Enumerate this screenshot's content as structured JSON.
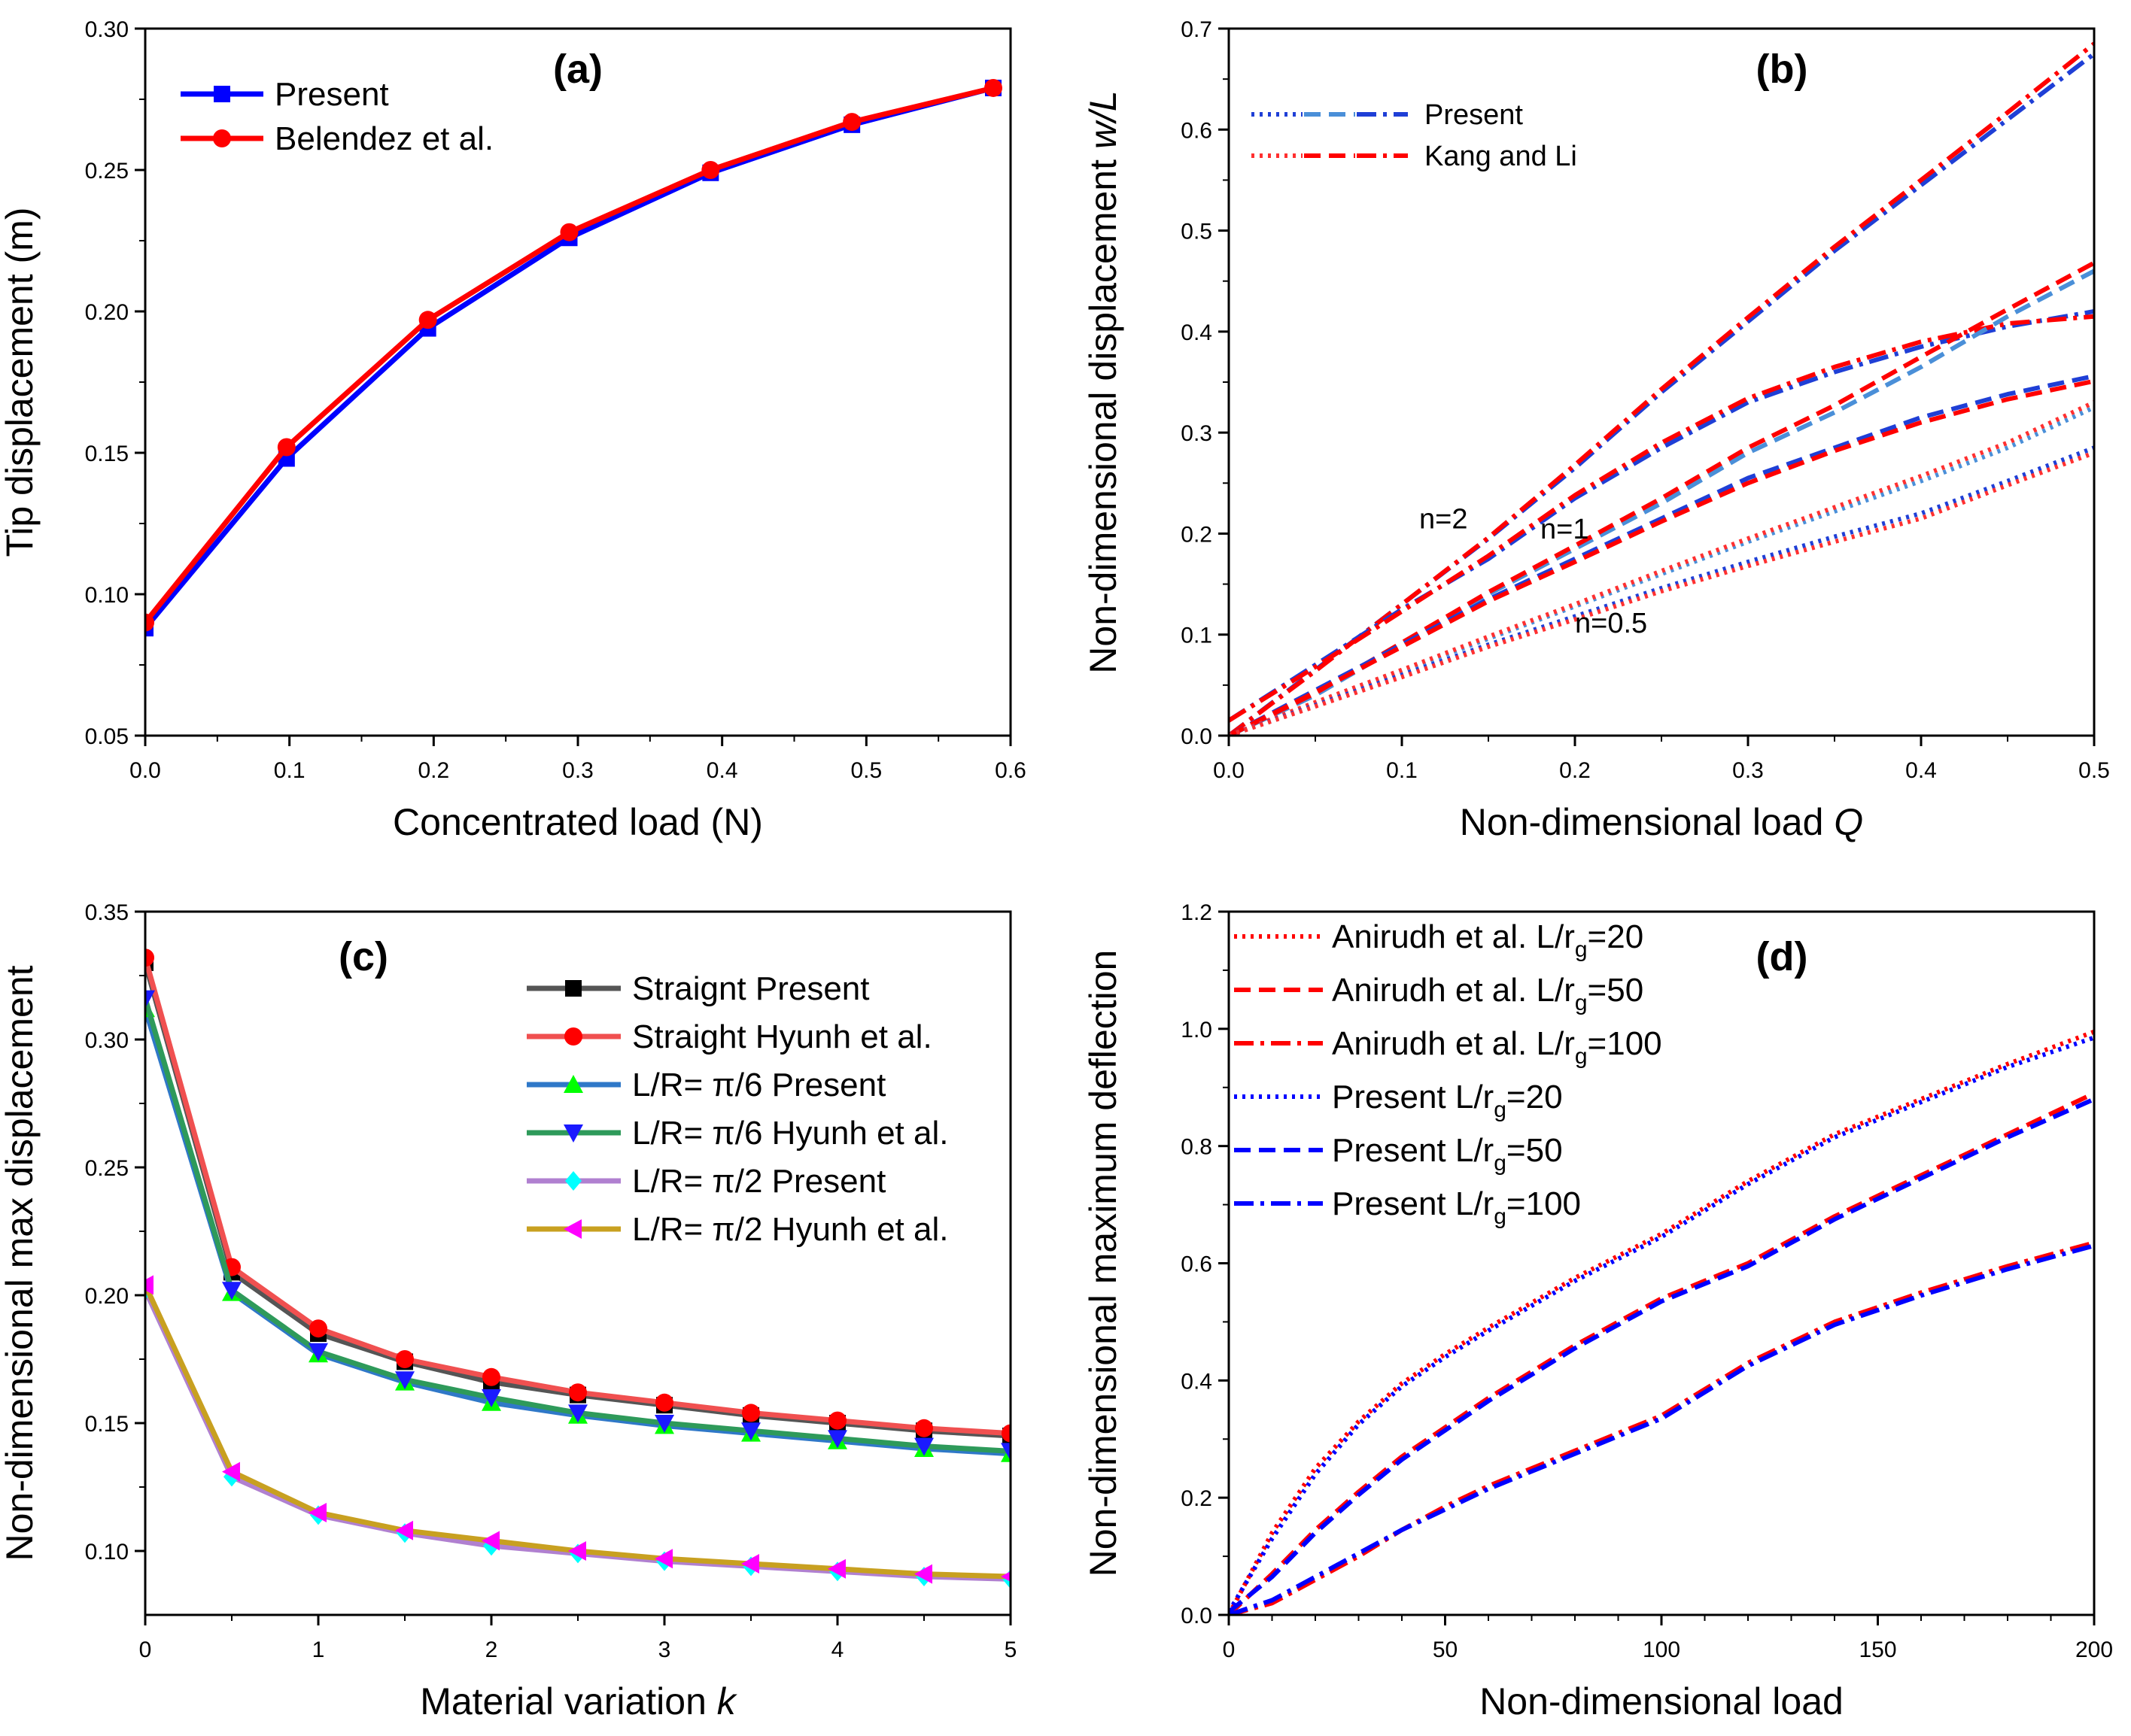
{
  "chart_data": [
    {
      "panel": "(a)",
      "type": "line",
      "xlabel": "Concentrated load (N)",
      "ylabel": "Tip displacement (m)",
      "xlim": [
        0,
        0.6
      ],
      "ylim": [
        0.05,
        0.3
      ],
      "xticks": [
        "0.0",
        "0.1",
        "0.2",
        "0.3",
        "0.4",
        "0.5",
        "0.6"
      ],
      "yticks": [
        "0.05",
        "0.10",
        "0.15",
        "0.20",
        "0.25",
        "0.30"
      ],
      "legend": "top-left",
      "series": [
        {
          "name": "Present",
          "color": "#0000ff",
          "marker": "square",
          "style": "solid",
          "x": [
            0.0,
            0.098,
            0.196,
            0.294,
            0.392,
            0.49,
            0.588
          ],
          "y": [
            0.088,
            0.148,
            0.194,
            0.226,
            0.249,
            0.266,
            0.279
          ]
        },
        {
          "name": "Belendez et al.",
          "color": "#ff0000",
          "marker": "circle",
          "style": "solid",
          "x": [
            0.0,
            0.098,
            0.196,
            0.294,
            0.392,
            0.49,
            0.588
          ],
          "y": [
            0.09,
            0.152,
            0.197,
            0.228,
            0.25,
            0.267,
            0.279
          ]
        }
      ]
    },
    {
      "panel": "(b)",
      "type": "line",
      "xlabel": "Non-dimensional load",
      "xlabel_var": "Q",
      "ylabel": "Non-dimensional displacement",
      "ylabel_var": "w/L",
      "xlim": [
        0,
        0.5
      ],
      "ylim": [
        0,
        0.7
      ],
      "xticks": [
        "0.0",
        "0.1",
        "0.2",
        "0.3",
        "0.4",
        "0.5"
      ],
      "yticks": [
        "0.0",
        "0.1",
        "0.2",
        "0.3",
        "0.4",
        "0.5",
        "0.6",
        "0.7"
      ],
      "legend": "top-left",
      "legend_entries": [
        {
          "name": "Present",
          "colors": [
            "#1f3fd6",
            "#4a8fd8",
            "#1f3fd6"
          ]
        },
        {
          "name": "Kang and Li",
          "colors": [
            "#ff3030",
            "#ff0000",
            "#ff0000"
          ]
        }
      ],
      "annotations": [
        {
          "text": "n=2",
          "x": 0.11,
          "y": 0.205
        },
        {
          "text": "n=1",
          "x": 0.18,
          "y": 0.195
        },
        {
          "text": "n=0.5",
          "x": 0.2,
          "y": 0.102
        }
      ],
      "series": [
        {
          "name": "Present",
          "group": "n=2",
          "style": "dashdot",
          "color": "#1f3fd6",
          "x": [
            0,
            0.05,
            0.1,
            0.15,
            0.2,
            0.25,
            0.3,
            0.35,
            0.4,
            0.45,
            0.5
          ],
          "y": [
            0,
            0.065,
            0.13,
            0.195,
            0.265,
            0.34,
            0.41,
            0.48,
            0.545,
            0.61,
            0.675
          ]
        },
        {
          "name": "Kang and Li",
          "group": "n=2",
          "style": "dashdot",
          "color": "#ff0000",
          "x": [
            0,
            0.05,
            0.1,
            0.15,
            0.2,
            0.25,
            0.3,
            0.35,
            0.4,
            0.45,
            0.5
          ],
          "y": [
            0,
            0.064,
            0.13,
            0.196,
            0.268,
            0.343,
            0.414,
            0.484,
            0.55,
            0.617,
            0.685
          ]
        },
        {
          "name": "Present",
          "group": "n=2",
          "style": "dashdot",
          "color": "#1f3fd6",
          "x": [
            0,
            0.05,
            0.1,
            0.15,
            0.2,
            0.25,
            0.3,
            0.35,
            0.4,
            0.45,
            0.5
          ],
          "y": [
            0.015,
            0.07,
            0.125,
            0.175,
            0.235,
            0.285,
            0.33,
            0.36,
            0.385,
            0.405,
            0.42
          ]
        },
        {
          "name": "Kang and Li",
          "group": "n=2",
          "style": "dashdot",
          "color": "#ff0000",
          "x": [
            0,
            0.05,
            0.1,
            0.15,
            0.2,
            0.25,
            0.3,
            0.35,
            0.4,
            0.45,
            0.5
          ],
          "y": [
            0.015,
            0.068,
            0.123,
            0.178,
            0.238,
            0.29,
            0.334,
            0.365,
            0.39,
            0.408,
            0.415
          ]
        },
        {
          "name": "Present",
          "group": "n=1",
          "style": "dashed",
          "color": "#4a8fd8",
          "x": [
            0,
            0.05,
            0.1,
            0.15,
            0.2,
            0.25,
            0.3,
            0.35,
            0.4,
            0.45,
            0.5
          ],
          "y": [
            0,
            0.04,
            0.09,
            0.14,
            0.185,
            0.23,
            0.28,
            0.32,
            0.365,
            0.415,
            0.46
          ]
        },
        {
          "name": "Kang and Li",
          "group": "n=1",
          "style": "dashed",
          "color": "#ff0000",
          "x": [
            0,
            0.05,
            0.1,
            0.15,
            0.2,
            0.25,
            0.3,
            0.35,
            0.4,
            0.45,
            0.5
          ],
          "y": [
            0,
            0.042,
            0.092,
            0.142,
            0.188,
            0.235,
            0.285,
            0.327,
            0.375,
            0.422,
            0.468
          ]
        },
        {
          "name": "Present",
          "group": "n=1",
          "style": "dashed",
          "color": "#1f3fd6",
          "x": [
            0,
            0.05,
            0.1,
            0.15,
            0.2,
            0.25,
            0.3,
            0.35,
            0.4,
            0.45,
            0.5
          ],
          "y": [
            0,
            0.045,
            0.09,
            0.135,
            0.175,
            0.215,
            0.255,
            0.285,
            0.315,
            0.338,
            0.356
          ]
        },
        {
          "name": "Kang and Li",
          "group": "n=1",
          "style": "dashed",
          "color": "#ff0000",
          "x": [
            0,
            0.05,
            0.1,
            0.15,
            0.2,
            0.25,
            0.3,
            0.35,
            0.4,
            0.45,
            0.5
          ],
          "y": [
            0,
            0.043,
            0.088,
            0.133,
            0.172,
            0.212,
            0.25,
            0.282,
            0.31,
            0.333,
            0.351
          ]
        },
        {
          "name": "Present",
          "group": "n=0.5",
          "style": "dotted",
          "color": "#4a8fd8",
          "x": [
            0,
            0.05,
            0.1,
            0.15,
            0.2,
            0.25,
            0.3,
            0.35,
            0.4,
            0.45,
            0.5
          ],
          "y": [
            0,
            0.032,
            0.064,
            0.096,
            0.128,
            0.16,
            0.192,
            0.222,
            0.252,
            0.285,
            0.325
          ]
        },
        {
          "name": "Kang and Li",
          "group": "n=0.5",
          "style": "dotted",
          "color": "#ff3030",
          "x": [
            0,
            0.05,
            0.1,
            0.15,
            0.2,
            0.25,
            0.3,
            0.35,
            0.4,
            0.45,
            0.5
          ],
          "y": [
            0,
            0.033,
            0.065,
            0.098,
            0.13,
            0.163,
            0.195,
            0.226,
            0.257,
            0.29,
            0.33
          ]
        },
        {
          "name": "Present",
          "group": "n=0.5",
          "style": "dotted",
          "color": "#1f3fd6",
          "x": [
            0,
            0.05,
            0.1,
            0.15,
            0.2,
            0.25,
            0.3,
            0.35,
            0.4,
            0.45,
            0.5
          ],
          "y": [
            0,
            0.03,
            0.06,
            0.09,
            0.118,
            0.146,
            0.172,
            0.197,
            0.22,
            0.252,
            0.285
          ]
        },
        {
          "name": "Kang and Li",
          "group": "n=0.5",
          "style": "dotted",
          "color": "#ff3030",
          "x": [
            0,
            0.05,
            0.1,
            0.15,
            0.2,
            0.25,
            0.3,
            0.35,
            0.4,
            0.45,
            0.5
          ],
          "y": [
            0,
            0.029,
            0.058,
            0.088,
            0.115,
            0.143,
            0.168,
            0.192,
            0.215,
            0.248,
            0.28
          ]
        }
      ]
    },
    {
      "panel": "(c)",
      "type": "line",
      "xlabel": "Material variation",
      "xlabel_var": "k",
      "ylabel": "Non-dimensional max displacement",
      "xlim": [
        0,
        5
      ],
      "ylim": [
        0.075,
        0.35
      ],
      "xticks": [
        "0",
        "1",
        "2",
        "3",
        "4",
        "5"
      ],
      "yticks": [
        "0.10",
        "0.15",
        "0.20",
        "0.25",
        "0.30",
        "0.35"
      ],
      "legend": "top-right",
      "series": [
        {
          "name": "Straignt Present",
          "color": "#000000",
          "line_color": "#555555",
          "marker": "square",
          "x": [
            0,
            0.5,
            1,
            1.5,
            2,
            2.5,
            3,
            3.5,
            4,
            4.5,
            5
          ],
          "y": [
            0.33,
            0.209,
            0.185,
            0.174,
            0.166,
            0.161,
            0.157,
            0.153,
            0.15,
            0.147,
            0.145
          ]
        },
        {
          "name": "Straight Hyunh et al.",
          "color": "#ff0000",
          "line_color": "#f05050",
          "marker": "circle",
          "x": [
            0,
            0.5,
            1,
            1.5,
            2,
            2.5,
            3,
            3.5,
            4,
            4.5,
            5
          ],
          "y": [
            0.332,
            0.211,
            0.187,
            0.175,
            0.168,
            0.162,
            0.158,
            0.154,
            0.151,
            0.148,
            0.146
          ]
        },
        {
          "name": "L/R= π/6 Present",
          "color": "#00ff00",
          "line_color": "#2f78c8",
          "marker": "triangle-up",
          "x": [
            0,
            0.5,
            1,
            1.5,
            2,
            2.5,
            3,
            3.5,
            4,
            4.5,
            5
          ],
          "y": [
            0.312,
            0.201,
            0.177,
            0.166,
            0.158,
            0.153,
            0.149,
            0.146,
            0.143,
            0.14,
            0.138
          ]
        },
        {
          "name": "L/R= π/6 Hyunh et al.",
          "color": "#1a1aff",
          "line_color": "#2e9a5a",
          "marker": "triangle-down",
          "x": [
            0,
            0.5,
            1,
            1.5,
            2,
            2.5,
            3,
            3.5,
            4,
            4.5,
            5
          ],
          "y": [
            0.316,
            0.202,
            0.178,
            0.167,
            0.16,
            0.154,
            0.15,
            0.147,
            0.144,
            0.141,
            0.139
          ]
        },
        {
          "name": "L/R= π/2 Present",
          "color": "#00ffff",
          "line_color": "#b080d0",
          "marker": "diamond",
          "x": [
            0,
            0.5,
            1,
            1.5,
            2,
            2.5,
            3,
            3.5,
            4,
            4.5,
            5
          ],
          "y": [
            0.202,
            0.129,
            0.114,
            0.107,
            0.102,
            0.099,
            0.096,
            0.094,
            0.092,
            0.09,
            0.089
          ]
        },
        {
          "name": "L/R= π/2 Hyunh et al.",
          "color": "#ff00ff",
          "line_color": "#c8a020",
          "marker": "triangle-left",
          "x": [
            0,
            0.5,
            1,
            1.5,
            2,
            2.5,
            3,
            3.5,
            4,
            4.5,
            5
          ],
          "y": [
            0.204,
            0.131,
            0.115,
            0.108,
            0.104,
            0.1,
            0.097,
            0.095,
            0.093,
            0.091,
            0.09
          ]
        }
      ]
    },
    {
      "panel": "(d)",
      "type": "line",
      "xlabel": "Non-dimensional load",
      "ylabel": "Non-dimensional maximum deflection",
      "xlim": [
        0,
        200
      ],
      "ylim": [
        0,
        1.2
      ],
      "xticks": [
        "0",
        "50",
        "100",
        "150",
        "200"
      ],
      "yticks": [
        "0.0",
        "0.2",
        "0.4",
        "0.6",
        "0.8",
        "1.0",
        "1.2"
      ],
      "legend": "top-left",
      "series": [
        {
          "name": "Anirudh et al. L/r",
          "sub": "g",
          "suffix": "=20",
          "style": "dotted",
          "color": "#ff0000",
          "x": [
            0,
            10,
            20,
            30,
            40,
            50,
            60,
            80,
            100,
            120,
            140,
            160,
            180,
            200
          ],
          "y": [
            0,
            0.14,
            0.25,
            0.33,
            0.395,
            0.445,
            0.49,
            0.575,
            0.65,
            0.74,
            0.82,
            0.88,
            0.94,
            0.995
          ]
        },
        {
          "name": "Anirudh et al. L/r",
          "sub": "g",
          "suffix": "=50",
          "style": "dashed",
          "color": "#ff0000",
          "x": [
            0,
            10,
            20,
            30,
            40,
            50,
            60,
            80,
            100,
            120,
            140,
            160,
            180,
            200
          ],
          "y": [
            0.0,
            0.07,
            0.145,
            0.21,
            0.27,
            0.32,
            0.37,
            0.46,
            0.54,
            0.6,
            0.68,
            0.75,
            0.82,
            0.89
          ]
        },
        {
          "name": "Anirudh et al. L/r",
          "sub": "g",
          "suffix": "=100",
          "style": "dashdot",
          "color": "#ff0000",
          "x": [
            0,
            10,
            20,
            30,
            40,
            50,
            60,
            80,
            100,
            120,
            140,
            160,
            180,
            200
          ],
          "y": [
            0.0,
            0.02,
            0.06,
            0.1,
            0.145,
            0.185,
            0.22,
            0.28,
            0.34,
            0.43,
            0.5,
            0.55,
            0.595,
            0.635
          ]
        },
        {
          "name": "Present L/r",
          "sub": "g",
          "suffix": "=20",
          "style": "dotted",
          "color": "#0000ff",
          "x": [
            0,
            10,
            20,
            30,
            40,
            50,
            60,
            80,
            100,
            120,
            140,
            160,
            180,
            200
          ],
          "y": [
            0.005,
            0.13,
            0.24,
            0.325,
            0.39,
            0.44,
            0.485,
            0.57,
            0.645,
            0.735,
            0.815,
            0.875,
            0.935,
            0.985
          ]
        },
        {
          "name": "Present L/r",
          "sub": "g",
          "suffix": "=50",
          "style": "dashed",
          "color": "#0000ff",
          "x": [
            0,
            10,
            20,
            30,
            40,
            50,
            60,
            80,
            100,
            120,
            140,
            160,
            180,
            200
          ],
          "y": [
            0.005,
            0.065,
            0.14,
            0.205,
            0.265,
            0.315,
            0.365,
            0.455,
            0.535,
            0.595,
            0.675,
            0.745,
            0.815,
            0.88
          ]
        },
        {
          "name": "Present L/r",
          "sub": "g",
          "suffix": "=100",
          "style": "dashdot",
          "color": "#0000ff",
          "x": [
            0,
            10,
            20,
            30,
            40,
            50,
            60,
            80,
            100,
            120,
            140,
            160,
            180,
            200
          ],
          "y": [
            0.0,
            0.025,
            0.065,
            0.105,
            0.145,
            0.18,
            0.215,
            0.275,
            0.335,
            0.425,
            0.495,
            0.545,
            0.59,
            0.63
          ]
        }
      ]
    }
  ]
}
